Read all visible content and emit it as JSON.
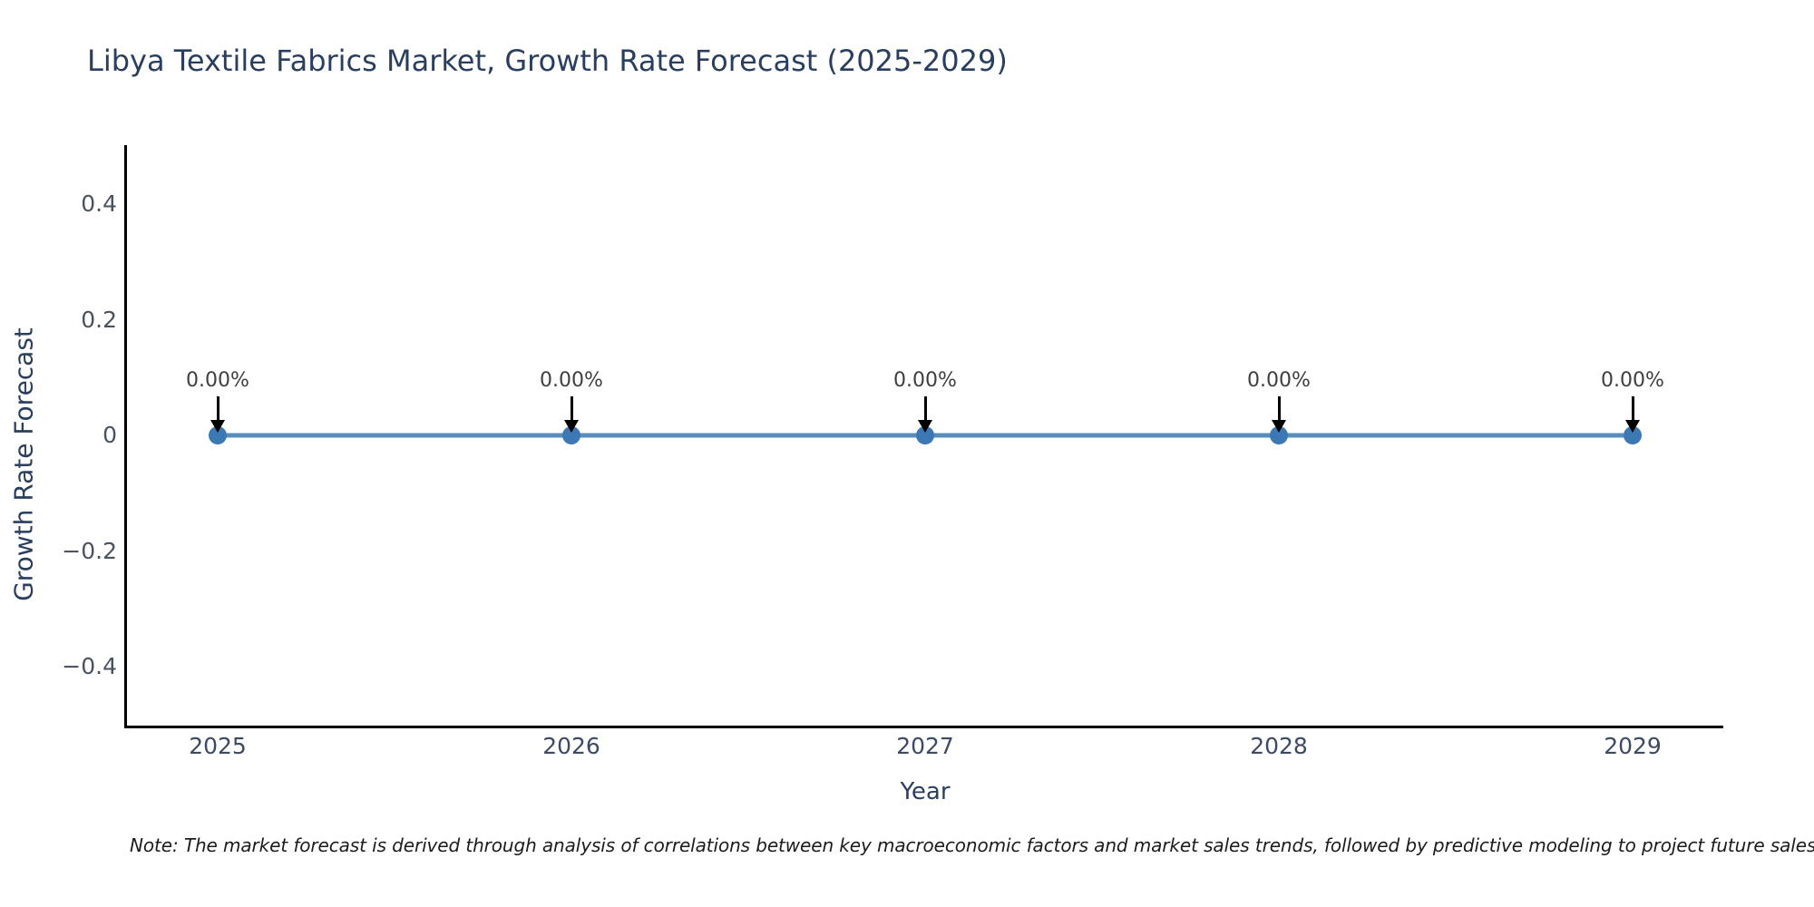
{
  "title": "Libya Textile Fabrics Market, Growth Rate Forecast (2025-2029)",
  "note": "Note: The market forecast is derived through analysis of correlations between key macroeconomic factors and market sales trends, followed by predictive modeling to project future sales.",
  "chart_data": {
    "type": "line",
    "title": "Libya Textile Fabrics Market, Growth Rate Forecast (2025-2029)",
    "x": [
      2025,
      2026,
      2027,
      2028,
      2029
    ],
    "series": [
      {
        "name": "Growth Rate Forecast",
        "values": [
          0,
          0,
          0,
          0,
          0
        ]
      }
    ],
    "point_labels": [
      "0.00%",
      "0.00%",
      "0.00%",
      "0.00%",
      "0.00%"
    ],
    "xlabel": "Year",
    "ylabel": "Growth Rate Forecast",
    "ylim": [
      -0.5,
      0.5
    ],
    "yticks": [
      {
        "label": "0.4",
        "value": 0.4
      },
      {
        "label": "0.2",
        "value": 0.2
      },
      {
        "label": "0",
        "value": 0
      },
      {
        "label": "−0.2",
        "value": -0.2
      },
      {
        "label": "−0.4",
        "value": -0.4
      }
    ],
    "grid": false,
    "legend": "none",
    "annotation_style": "down-arrow",
    "colors": {
      "line": "#5a8cbc",
      "marker": "#3c78b4",
      "arrow": "#000000",
      "axis": "#000000",
      "title_text": "#2a3f5f",
      "tick_text": "#4a5261"
    }
  }
}
